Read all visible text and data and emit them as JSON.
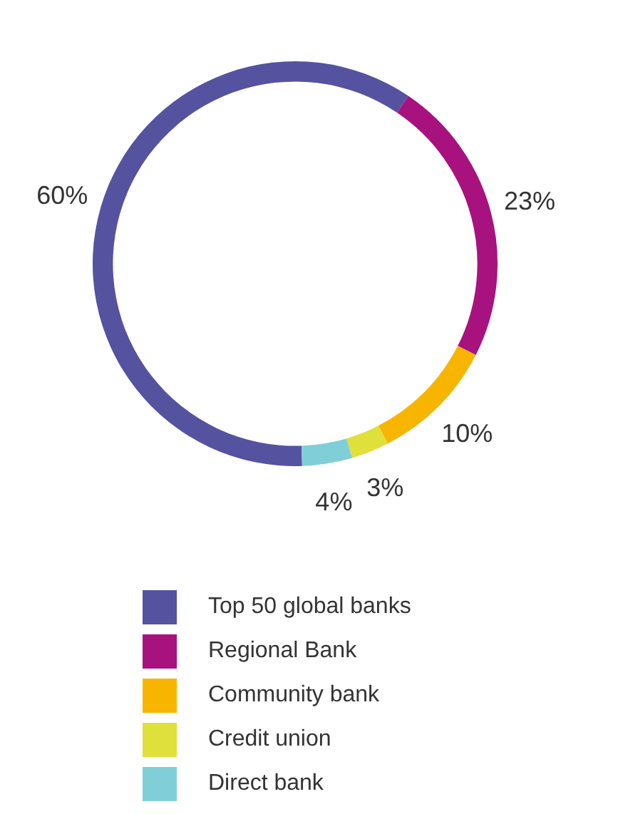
{
  "chart_data": {
    "type": "donut",
    "categories": [
      "Top 50 global banks",
      "Regional Bank",
      "Community bank",
      "Credit union",
      "Direct bank"
    ],
    "values": [
      60,
      23,
      10,
      3,
      4
    ],
    "colors": [
      "#5552a0",
      "#a8127f",
      "#f7b500",
      "#dfe03c",
      "#80cfd8"
    ],
    "value_labels": [
      "60%",
      "23%",
      "10%",
      "3%",
      "4%"
    ],
    "legend": "bottom"
  }
}
